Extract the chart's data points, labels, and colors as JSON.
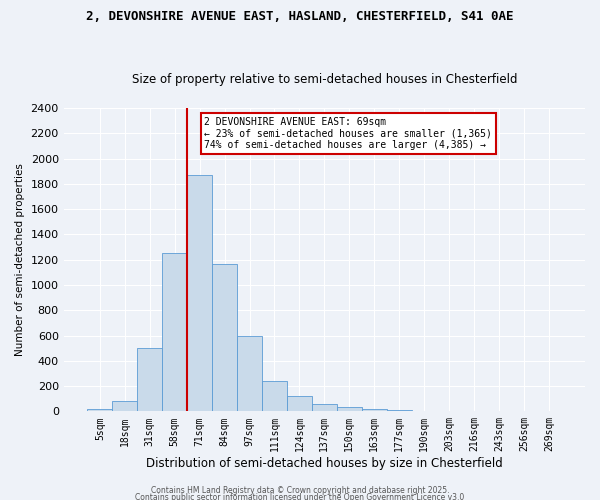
{
  "title1": "2, DEVONSHIRE AVENUE EAST, HASLAND, CHESTERFIELD, S41 0AE",
  "title2": "Size of property relative to semi-detached houses in Chesterfield",
  "xlabel": "Distribution of semi-detached houses by size in Chesterfield",
  "ylabel": "Number of semi-detached properties",
  "bin_labels": [
    "5sqm",
    "18sqm",
    "31sqm",
    "58sqm",
    "71sqm",
    "84sqm",
    "97sqm",
    "111sqm",
    "124sqm",
    "137sqm",
    "150sqm",
    "163sqm",
    "177sqm",
    "190sqm",
    "203sqm",
    "216sqm",
    "243sqm",
    "256sqm",
    "269sqm"
  ],
  "bar_values": [
    20,
    80,
    500,
    1250,
    1870,
    1165,
    600,
    240,
    120,
    60,
    35,
    20,
    8,
    0,
    0,
    5,
    0,
    0,
    0
  ],
  "bar_color": "#c9daea",
  "bar_edge_color": "#5b9bd5",
  "red_line_x": 3.5,
  "annotation_text": "2 DEVONSHIRE AVENUE EAST: 69sqm\n← 23% of semi-detached houses are smaller (1,365)\n74% of semi-detached houses are larger (4,385) →",
  "ylim": [
    0,
    2400
  ],
  "yticks": [
    0,
    200,
    400,
    600,
    800,
    1000,
    1200,
    1400,
    1600,
    1800,
    2000,
    2200,
    2400
  ],
  "footer1": "Contains HM Land Registry data © Crown copyright and database right 2025.",
  "footer2": "Contains public sector information licensed under the Open Government Licence v3.0",
  "background_color": "#eef2f8",
  "grid_color": "#ffffff",
  "annotation_box_facecolor": "#ffffff",
  "annotation_box_edgecolor": "#cc0000",
  "red_line_color": "#cc0000"
}
